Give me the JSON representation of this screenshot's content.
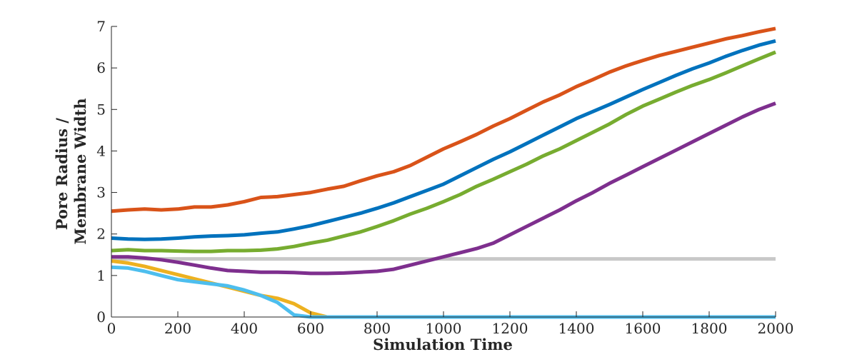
{
  "chart_data": {
    "type": "line",
    "title": "",
    "xlabel": "Simulation Time",
    "ylabel_lines": [
      "Pore Radius /",
      "Membrane Width"
    ],
    "xlim": [
      0,
      2000
    ],
    "ylim": [
      0,
      7
    ],
    "xticks": [
      0,
      200,
      400,
      600,
      800,
      1000,
      1200,
      1400,
      1600,
      1800,
      2000
    ],
    "yticks": [
      0,
      1,
      2,
      3,
      4,
      5,
      6,
      7
    ],
    "grid": false,
    "series": [
      {
        "name": "threshold",
        "color": "#c8c8c8",
        "x": [
          0,
          2000
        ],
        "y": [
          1.4,
          1.4
        ]
      },
      {
        "name": "orange",
        "color": "#d95319",
        "x": [
          0,
          50,
          100,
          150,
          200,
          250,
          300,
          350,
          400,
          450,
          500,
          550,
          600,
          650,
          700,
          750,
          800,
          850,
          900,
          950,
          1000,
          1050,
          1100,
          1150,
          1200,
          1250,
          1300,
          1350,
          1400,
          1450,
          1500,
          1550,
          1600,
          1650,
          1700,
          1750,
          1800,
          1850,
          1900,
          1950,
          2000
        ],
        "y": [
          2.55,
          2.58,
          2.6,
          2.58,
          2.6,
          2.65,
          2.65,
          2.7,
          2.78,
          2.88,
          2.9,
          2.95,
          3.0,
          3.08,
          3.15,
          3.28,
          3.4,
          3.5,
          3.65,
          3.85,
          4.05,
          4.22,
          4.4,
          4.6,
          4.78,
          4.98,
          5.18,
          5.35,
          5.55,
          5.72,
          5.9,
          6.05,
          6.18,
          6.3,
          6.4,
          6.5,
          6.6,
          6.7,
          6.78,
          6.87,
          6.95
        ]
      },
      {
        "name": "blue",
        "color": "#0072bd",
        "x": [
          0,
          50,
          100,
          150,
          200,
          250,
          300,
          350,
          400,
          450,
          500,
          550,
          600,
          650,
          700,
          750,
          800,
          850,
          900,
          950,
          1000,
          1050,
          1100,
          1150,
          1200,
          1250,
          1300,
          1350,
          1400,
          1450,
          1500,
          1550,
          1600,
          1650,
          1700,
          1750,
          1800,
          1850,
          1900,
          1950,
          2000
        ],
        "y": [
          1.9,
          1.88,
          1.87,
          1.88,
          1.9,
          1.93,
          1.95,
          1.96,
          1.98,
          2.02,
          2.05,
          2.12,
          2.2,
          2.3,
          2.4,
          2.5,
          2.62,
          2.75,
          2.9,
          3.05,
          3.2,
          3.4,
          3.6,
          3.8,
          3.98,
          4.18,
          4.38,
          4.58,
          4.78,
          4.95,
          5.12,
          5.3,
          5.48,
          5.65,
          5.82,
          5.98,
          6.12,
          6.28,
          6.42,
          6.55,
          6.65
        ]
      },
      {
        "name": "green",
        "color": "#77ac30",
        "x": [
          0,
          50,
          100,
          150,
          200,
          250,
          300,
          350,
          400,
          450,
          500,
          550,
          600,
          650,
          700,
          750,
          800,
          850,
          900,
          950,
          1000,
          1050,
          1100,
          1150,
          1200,
          1250,
          1300,
          1350,
          1400,
          1450,
          1500,
          1550,
          1600,
          1650,
          1700,
          1750,
          1800,
          1850,
          1900,
          1950,
          2000
        ],
        "y": [
          1.6,
          1.62,
          1.6,
          1.6,
          1.59,
          1.58,
          1.58,
          1.6,
          1.6,
          1.61,
          1.64,
          1.7,
          1.78,
          1.85,
          1.95,
          2.05,
          2.18,
          2.32,
          2.48,
          2.62,
          2.78,
          2.95,
          3.15,
          3.32,
          3.5,
          3.68,
          3.88,
          4.05,
          4.25,
          4.45,
          4.65,
          4.88,
          5.08,
          5.25,
          5.42,
          5.58,
          5.72,
          5.88,
          6.05,
          6.22,
          6.38
        ]
      },
      {
        "name": "purple",
        "color": "#7e2f8e",
        "x": [
          0,
          50,
          100,
          150,
          200,
          250,
          300,
          350,
          400,
          450,
          500,
          550,
          600,
          650,
          700,
          750,
          800,
          850,
          900,
          950,
          1000,
          1050,
          1100,
          1150,
          1200,
          1250,
          1300,
          1350,
          1400,
          1450,
          1500,
          1550,
          1600,
          1650,
          1700,
          1750,
          1800,
          1850,
          1900,
          1950,
          2000
        ],
        "y": [
          1.45,
          1.45,
          1.42,
          1.38,
          1.32,
          1.25,
          1.18,
          1.12,
          1.1,
          1.08,
          1.08,
          1.07,
          1.05,
          1.05,
          1.06,
          1.08,
          1.1,
          1.15,
          1.25,
          1.35,
          1.45,
          1.55,
          1.65,
          1.78,
          1.98,
          2.18,
          2.38,
          2.58,
          2.8,
          3.0,
          3.22,
          3.42,
          3.62,
          3.82,
          4.02,
          4.22,
          4.42,
          4.62,
          4.82,
          5.0,
          5.15
        ]
      },
      {
        "name": "yellow",
        "color": "#edb120",
        "x": [
          0,
          50,
          100,
          150,
          200,
          250,
          300,
          350,
          400,
          450,
          500,
          550,
          600,
          650,
          700,
          2000
        ],
        "y": [
          1.35,
          1.3,
          1.22,
          1.12,
          1.02,
          0.92,
          0.82,
          0.72,
          0.62,
          0.52,
          0.45,
          0.32,
          0.1,
          0.0,
          0.0,
          0.0
        ]
      },
      {
        "name": "cyan",
        "color": "#4dbeee",
        "x": [
          0,
          50,
          100,
          150,
          200,
          250,
          300,
          350,
          400,
          450,
          500,
          550,
          600,
          2000
        ],
        "y": [
          1.2,
          1.18,
          1.1,
          1.0,
          0.9,
          0.85,
          0.8,
          0.75,
          0.65,
          0.52,
          0.35,
          0.05,
          0.0,
          0.0
        ]
      }
    ]
  }
}
